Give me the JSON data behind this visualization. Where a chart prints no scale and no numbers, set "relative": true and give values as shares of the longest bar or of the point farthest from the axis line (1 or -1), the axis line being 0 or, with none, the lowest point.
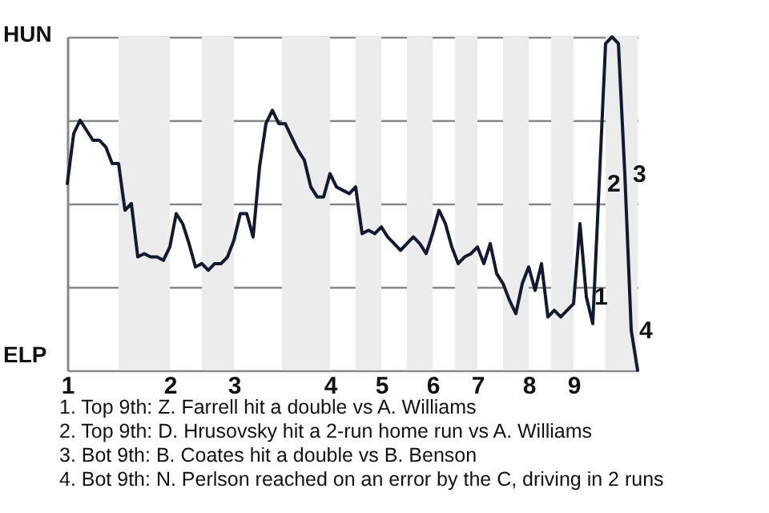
{
  "chart_data": {
    "type": "line",
    "relative": true,
    "categories": [
      "1",
      null,
      null,
      null,
      null,
      null,
      null,
      null,
      null,
      null,
      null,
      null,
      null,
      null,
      null,
      null,
      "2",
      null,
      null,
      null,
      null,
      null,
      null,
      null,
      null,
      null,
      "3",
      null,
      null,
      null,
      null,
      null,
      null,
      null,
      null,
      null,
      null,
      null,
      null,
      null,
      null,
      "4",
      null,
      null,
      null,
      null,
      null,
      null,
      null,
      "5",
      null,
      null,
      null,
      null,
      null,
      null,
      null,
      "6",
      null,
      null,
      null,
      null,
      null,
      null,
      "7",
      null,
      null,
      null,
      null,
      null,
      null,
      null,
      "8",
      null,
      null,
      null,
      null,
      null,
      null,
      "9",
      null,
      null,
      null,
      null,
      null,
      null,
      null,
      null,
      null,
      null
    ],
    "series": [
      {
        "color": "#101a33",
        "values": [
          0.56,
          0.71,
          0.75,
          0.72,
          0.69,
          0.69,
          0.67,
          0.62,
          0.62,
          0.48,
          0.5,
          0.34,
          0.35,
          0.34,
          0.34,
          0.33,
          0.37,
          0.47,
          0.44,
          0.38,
          0.31,
          0.32,
          0.3,
          0.32,
          0.32,
          0.34,
          0.39,
          0.47,
          0.47,
          0.4,
          0.61,
          0.74,
          0.78,
          0.74,
          0.74,
          0.7,
          0.66,
          0.63,
          0.55,
          0.52,
          0.52,
          0.59,
          0.55,
          0.54,
          0.53,
          0.55,
          0.41,
          0.42,
          0.41,
          0.43,
          0.4,
          0.38,
          0.36,
          0.38,
          0.4,
          0.38,
          0.35,
          0.41,
          0.48,
          0.44,
          0.37,
          0.32,
          0.34,
          0.35,
          0.37,
          0.32,
          0.38,
          0.29,
          0.26,
          0.21,
          0.17,
          0.26,
          0.31,
          0.24,
          0.32,
          0.16,
          0.18,
          0.16,
          0.18,
          0.2,
          0.44,
          0.22,
          0.14,
          0.56,
          0.98,
          1,
          0.98,
          0.59,
          0.12,
          0
        ]
      }
    ],
    "value_labels": [
      null,
      null,
      null,
      null,
      null,
      null,
      null,
      null,
      null,
      null,
      null,
      null,
      null,
      null,
      null,
      null,
      null,
      null,
      null,
      null,
      null,
      null,
      null,
      null,
      null,
      null,
      null,
      null,
      null,
      null,
      null,
      null,
      null,
      null,
      null,
      null,
      null,
      null,
      null,
      null,
      null,
      null,
      null,
      null,
      null,
      null,
      null,
      null,
      null,
      null,
      null,
      null,
      null,
      null,
      null,
      null,
      null,
      null,
      null,
      null,
      null,
      null,
      null,
      null,
      null,
      null,
      null,
      null,
      null,
      null,
      null,
      null,
      null,
      null,
      null,
      null,
      null,
      null,
      null,
      null,
      null,
      "1",
      null,
      "2",
      null,
      null,
      null,
      "3",
      "4",
      null
    ],
    "grid": "y",
    "marker": "none",
    "annotations": [
      "HUN",
      "ELP",
      "1. Top 9th: Z. Farrell hit a double vs A. Williams",
      "2. Top 9th: D. Hrusovsky hit a 2-run home run vs A. Williams",
      "3. Bot 9th: B. Coates hit a double vs B. Benson",
      "4. Bot 9th: N. Perlson reached on an error by the C, driving in 2 runs"
    ]
  }
}
